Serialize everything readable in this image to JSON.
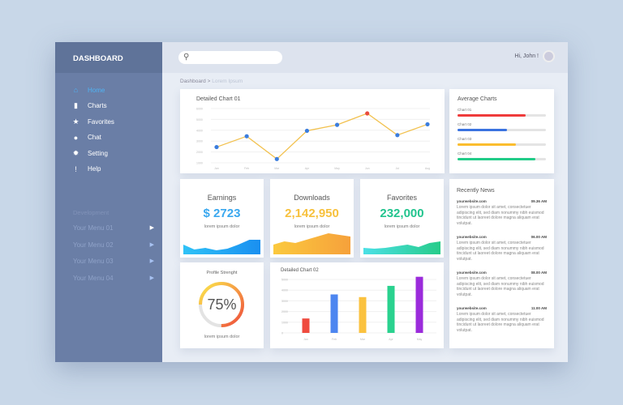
{
  "sidebar": {
    "title": "DASHBOARD",
    "items": [
      {
        "label": "Home",
        "icon": "home-icon",
        "glyph": "⌂",
        "active": true
      },
      {
        "label": "Charts",
        "icon": "bar-chart-icon",
        "glyph": "▮"
      },
      {
        "label": "Favorites",
        "icon": "star-icon",
        "glyph": "★"
      },
      {
        "label": "Chat",
        "icon": "chat-bubble-icon",
        "glyph": "●"
      },
      {
        "label": "Setting",
        "icon": "gear-icon",
        "glyph": "✹"
      },
      {
        "label": "Help",
        "icon": "info-icon",
        "glyph": "!"
      }
    ],
    "section": "Development",
    "menus": [
      {
        "label": "Your Menu 01"
      },
      {
        "label": "Your Menu 02"
      },
      {
        "label": "Your Menu 03"
      },
      {
        "label": "Your Menu 04"
      }
    ],
    "arrow": "▶"
  },
  "topbar": {
    "search_placeholder": "",
    "search_glyph": "⚲",
    "greeting": "Hi, John !"
  },
  "breadcrumb": {
    "root": "Dashboard",
    "sep": " > ",
    "current": "Lorem Ipsum"
  },
  "chart_data": [
    {
      "type": "line",
      "title": "Detailed Chart 01",
      "categories": [
        "Jan",
        "Feb",
        "Mar",
        "Apr",
        "May",
        "Jun",
        "Jul",
        "Aug"
      ],
      "values": [
        2450,
        3450,
        1350,
        3950,
        4500,
        5550,
        3550,
        4550
      ],
      "highlight_index": 5,
      "ylim": [
        1000,
        6000
      ],
      "yticks": [
        1000,
        2000,
        3000,
        4000,
        5000,
        6000
      ],
      "grid": true,
      "line_color": "#f2c14e",
      "point_color": "#3b7ddd",
      "highlight_color": "#e94b3c"
    },
    {
      "type": "bar",
      "title": "Detailed Chart 02",
      "categories": [
        "Jan",
        "Feb",
        "Mar",
        "Apr",
        "May"
      ],
      "values": [
        1350,
        3600,
        3350,
        4400,
        5250
      ],
      "colors": [
        "#ef4b3f",
        "#4d86f0",
        "#fbc23f",
        "#2ad28f",
        "#9b2bdb"
      ],
      "ylim": [
        0,
        5000
      ],
      "yticks": [
        0,
        1000,
        2000,
        3000,
        4000,
        5000
      ],
      "grid": true
    }
  ],
  "average": {
    "title": "Average Charts",
    "bars": [
      {
        "label": "Chart 01",
        "value": 0.77,
        "color": "#ef3b3b"
      },
      {
        "label": "Chart 02",
        "value": 0.56,
        "color": "#3b73e0"
      },
      {
        "label": "Chart 03",
        "value": 0.66,
        "color": "#fbbd2e"
      },
      {
        "label": "Chart 04",
        "value": 0.88,
        "color": "#22cc88"
      }
    ]
  },
  "stats": [
    {
      "label": "Earnings",
      "value": "$ 2723",
      "sub": "lorem ipsum dolor",
      "color": "#3aa8ef",
      "grad": [
        "#2fc2f7",
        "#1a8ff0"
      ]
    },
    {
      "label": "Downloads",
      "value": "2,142,950",
      "sub": "lorem ipsum dolor",
      "color": "#f7c13d",
      "grad": [
        "#fbc93e",
        "#f6a13b"
      ]
    },
    {
      "label": "Favorites",
      "value": "232,000",
      "sub": "lorem ipsum dolor",
      "color": "#22c48e",
      "grad": [
        "#4be0e6",
        "#27cc8a"
      ]
    }
  ],
  "profile": {
    "title": "Profile Strenght",
    "percent": 75,
    "value_text": "75%",
    "sub": "lorem ipsum dolor"
  },
  "news": {
    "title": "Recently News",
    "items": [
      {
        "site": "yourwebsite.com",
        "time": "09.36 AM",
        "text": "Lorem ipsum dolor sit amet, consectetuer adipiscing elit, sed diam nonummy nibh euismod tincidunt ut laoreet dolore magna aliquam erat volutpat."
      },
      {
        "site": "yourwebsite.com",
        "time": "06.00 AM",
        "text": "Lorem ipsum dolor sit amet, consectetuer adipiscing elit, sed diam nonummy nibh euismod tincidunt ut laoreet dolore magna aliquam erat volutpat."
      },
      {
        "site": "yourwebsite.com",
        "time": "08.00 AM",
        "text": "Lorem ipsum dolor sit amet, consectetuer adipiscing elit, sed diam nonummy nibh euismod tincidunt ut laoreet dolore magna aliquam erat volutpat."
      },
      {
        "site": "yourwebsite.com",
        "time": "11.00 AM",
        "text": "Lorem ipsum dolor sit amet, consectetuer adipiscing elit, sed diam nonummy nibh euismod tincidunt ut laoreet dolore magna aliquam erat volutpat."
      }
    ]
  }
}
